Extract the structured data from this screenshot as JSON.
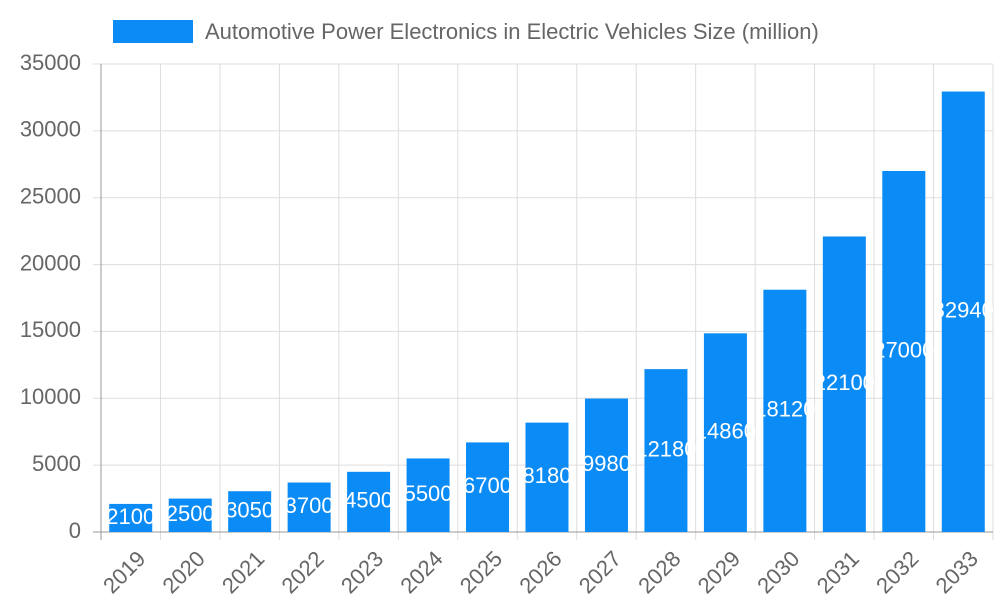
{
  "chart_data": {
    "type": "bar",
    "categories": [
      "2019",
      "2020",
      "2021",
      "2022",
      "2023",
      "2024",
      "2025",
      "2026",
      "2027",
      "2028",
      "2029",
      "2030",
      "2031",
      "2032",
      "2033"
    ],
    "series": [
      {
        "name": "Automotive Power Electronics in Electric Vehicles Size (million)",
        "color": "#0a8bf5",
        "values": [
          2100,
          2500,
          3050,
          3700,
          4500,
          5500,
          6700,
          8180,
          9980,
          12180,
          14860,
          18120,
          22100,
          27000,
          32940
        ]
      }
    ],
    "ylim": [
      0,
      35000
    ],
    "yticks": [
      0,
      5000,
      10000,
      15000,
      20000,
      25000,
      30000,
      35000
    ],
    "grid": true,
    "legend": "top",
    "data_labels": true
  }
}
